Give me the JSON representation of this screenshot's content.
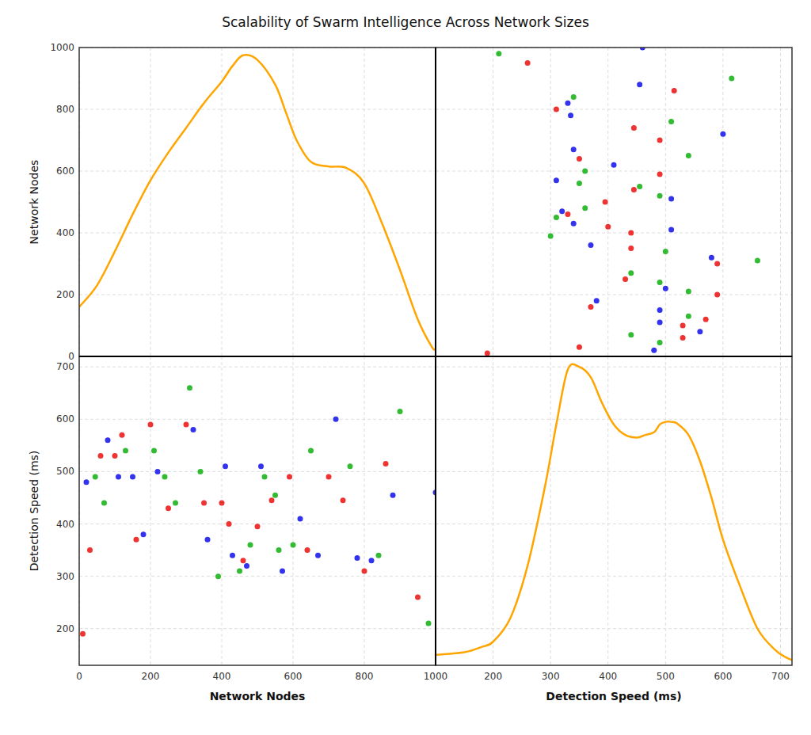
{
  "chart_data": [
    {
      "type": "line",
      "title": "Scalability of Swarm Intelligence Across Network Sizes",
      "ylabel": "Network Nodes",
      "x": [
        0,
        50,
        100,
        150,
        200,
        250,
        300,
        350,
        400,
        430,
        460,
        500,
        550,
        580,
        610,
        650,
        700,
        750,
        800,
        850,
        900,
        950,
        990,
        1000
      ],
      "values": [
        160,
        230,
        340,
        460,
        570,
        660,
        740,
        820,
        890,
        940,
        975,
        960,
        880,
        790,
        700,
        630,
        615,
        610,
        560,
        430,
        280,
        120,
        30,
        25
      ],
      "color": "#FFA500",
      "xlim": [
        0,
        1000
      ],
      "ylim": [
        0,
        1000
      ],
      "xticks": [
        0,
        200,
        400,
        600,
        800,
        1000
      ],
      "yticks": [
        0,
        200,
        400,
        600,
        800,
        1000
      ],
      "grid": true,
      "tick_labels": "y"
    },
    {
      "type": "scatter",
      "x": [
        190,
        480,
        350,
        490,
        530,
        440,
        560,
        530,
        490,
        570,
        540,
        490,
        370,
        380,
        590,
        540,
        500,
        490,
        430,
        440,
        590,
        660,
        580,
        500,
        440,
        370,
        300,
        440,
        510,
        400,
        340,
        310,
        330,
        320,
        360,
        395,
        510,
        490,
        445,
        455,
        350,
        310,
        490,
        360,
        410,
        350,
        540,
        340,
        490,
        600,
        445,
        510,
        335,
        310,
        330,
        340,
        515,
        455,
        615,
        260,
        210,
        460
      ],
      "values": [
        10,
        20,
        30,
        45,
        60,
        70,
        80,
        100,
        110,
        120,
        130,
        150,
        160,
        180,
        200,
        210,
        220,
        240,
        250,
        270,
        300,
        310,
        320,
        340,
        350,
        360,
        390,
        400,
        410,
        420,
        430,
        450,
        460,
        470,
        480,
        500,
        510,
        520,
        540,
        550,
        560,
        570,
        590,
        600,
        620,
        640,
        650,
        670,
        700,
        720,
        740,
        760,
        780,
        800,
        820,
        840,
        860,
        880,
        900,
        950,
        980,
        1000
      ],
      "colors": [
        "#EE3333",
        "#3333EE",
        "#EE3333",
        "#33BB33",
        "#EE3333",
        "#33BB33",
        "#3333EE",
        "#EE3333",
        "#3333EE",
        "#EE3333",
        "#33BB33",
        "#3333EE",
        "#EE3333",
        "#3333EE",
        "#EE3333",
        "#33BB33",
        "#3333EE",
        "#33BB33",
        "#EE3333",
        "#33BB33",
        "#EE3333",
        "#33BB33",
        "#3333EE",
        "#33BB33",
        "#EE3333",
        "#3333EE",
        "#33BB33",
        "#EE3333",
        "#3333EE",
        "#EE3333",
        "#3333EE",
        "#33BB33",
        "#EE3333",
        "#3333EE",
        "#33BB33",
        "#EE3333",
        "#3333EE",
        "#33BB33",
        "#EE3333",
        "#33BB33",
        "#33BB33",
        "#3333EE",
        "#EE3333",
        "#33BB33",
        "#3333EE",
        "#EE3333",
        "#33BB33",
        "#3333EE",
        "#EE3333",
        "#3333EE",
        "#EE3333",
        "#33BB33",
        "#3333EE",
        "#EE3333",
        "#3333EE",
        "#33BB33",
        "#EE3333",
        "#3333EE",
        "#33BB33",
        "#EE3333",
        "#33BB33",
        "#3333EE"
      ],
      "xlim": [
        100,
        720
      ],
      "ylim": [
        0,
        1000
      ],
      "xticks": [
        200,
        300,
        400,
        500,
        600,
        700
      ],
      "yticks": [
        0,
        200,
        400,
        600,
        800,
        1000
      ],
      "grid": true,
      "tick_labels": false
    },
    {
      "type": "scatter",
      "xlabel": "Network Nodes",
      "ylabel": "Detection Speed (ms)",
      "x": [
        10,
        20,
        30,
        45,
        60,
        70,
        80,
        100,
        110,
        120,
        130,
        150,
        160,
        180,
        200,
        210,
        220,
        240,
        250,
        270,
        300,
        310,
        320,
        340,
        350,
        360,
        390,
        400,
        410,
        420,
        430,
        450,
        460,
        470,
        480,
        500,
        510,
        520,
        540,
        550,
        560,
        570,
        590,
        600,
        620,
        640,
        650,
        670,
        700,
        720,
        740,
        760,
        780,
        800,
        820,
        840,
        860,
        880,
        900,
        950,
        980,
        1000
      ],
      "values": [
        190,
        480,
        350,
        490,
        530,
        440,
        560,
        530,
        490,
        570,
        540,
        490,
        370,
        380,
        590,
        540,
        500,
        490,
        430,
        440,
        590,
        660,
        580,
        500,
        440,
        370,
        300,
        440,
        510,
        400,
        340,
        310,
        330,
        320,
        360,
        395,
        510,
        490,
        445,
        455,
        350,
        310,
        490,
        360,
        410,
        350,
        540,
        340,
        490,
        600,
        445,
        510,
        335,
        310,
        330,
        340,
        515,
        455,
        615,
        260,
        210,
        460
      ],
      "colors": [
        "#EE3333",
        "#3333EE",
        "#EE3333",
        "#33BB33",
        "#EE3333",
        "#33BB33",
        "#3333EE",
        "#EE3333",
        "#3333EE",
        "#EE3333",
        "#33BB33",
        "#3333EE",
        "#EE3333",
        "#3333EE",
        "#EE3333",
        "#33BB33",
        "#3333EE",
        "#33BB33",
        "#EE3333",
        "#33BB33",
        "#EE3333",
        "#33BB33",
        "#3333EE",
        "#33BB33",
        "#EE3333",
        "#3333EE",
        "#33BB33",
        "#EE3333",
        "#3333EE",
        "#EE3333",
        "#3333EE",
        "#33BB33",
        "#EE3333",
        "#3333EE",
        "#33BB33",
        "#EE3333",
        "#3333EE",
        "#33BB33",
        "#EE3333",
        "#33BB33",
        "#33BB33",
        "#3333EE",
        "#EE3333",
        "#33BB33",
        "#3333EE",
        "#EE3333",
        "#33BB33",
        "#3333EE",
        "#EE3333",
        "#3333EE",
        "#EE3333",
        "#33BB33",
        "#3333EE",
        "#EE3333",
        "#3333EE",
        "#33BB33",
        "#EE3333",
        "#3333EE",
        "#33BB33",
        "#EE3333",
        "#33BB33",
        "#3333EE"
      ],
      "xlim": [
        0,
        1000
      ],
      "ylim": [
        130,
        720
      ],
      "xticks": [
        0,
        200,
        400,
        600,
        800,
        1000
      ],
      "yticks": [
        200,
        300,
        400,
        500,
        600,
        700
      ],
      "grid": true
    },
    {
      "type": "line",
      "xlabel": "Detection Speed (ms)",
      "x": [
        100,
        150,
        180,
        200,
        230,
        260,
        290,
        310,
        330,
        350,
        370,
        390,
        410,
        430,
        450,
        465,
        480,
        490,
        500,
        510,
        520,
        540,
        560,
        580,
        600,
        630,
        660,
        690,
        710,
        720
      ],
      "values": [
        150,
        155,
        165,
        175,
        220,
        320,
        470,
        590,
        695,
        700,
        680,
        630,
        590,
        570,
        565,
        570,
        575,
        590,
        595,
        595,
        592,
        570,
        520,
        450,
        370,
        280,
        200,
        160,
        145,
        140
      ],
      "color": "#FFA500",
      "xlim": [
        100,
        720
      ],
      "ylim": [
        130,
        720
      ],
      "xticks": [
        200,
        300,
        400,
        500,
        600,
        700
      ],
      "yticks": [
        200,
        300,
        400,
        500,
        600,
        700
      ],
      "grid": true,
      "tick_labels": "x"
    }
  ]
}
